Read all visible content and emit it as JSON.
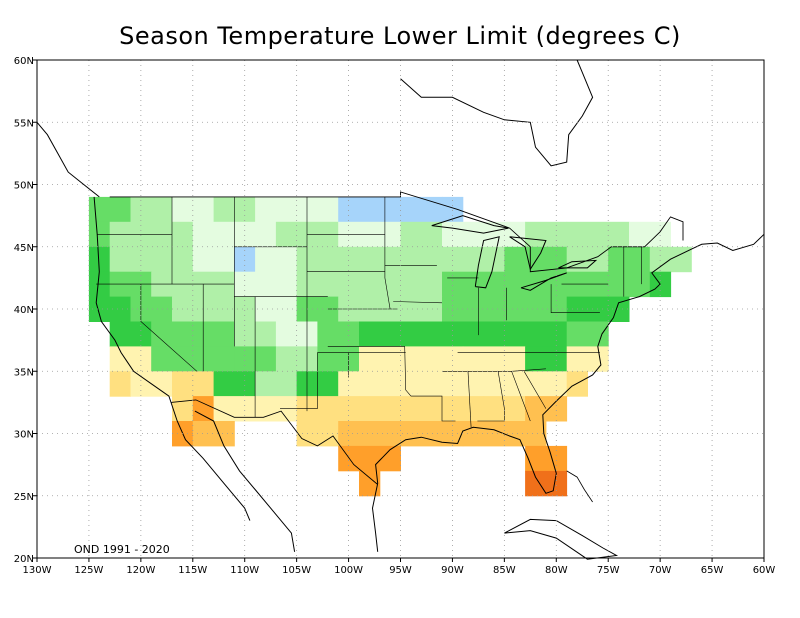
{
  "title": "Season Temperature Lower Limit (degrees C)",
  "period_label": "OND 1991 - 2020",
  "axes": {
    "lon_labels": [
      "130W",
      "125W",
      "120W",
      "115W",
      "110W",
      "105W",
      "100W",
      "95W",
      "90W",
      "85W",
      "80W",
      "75W",
      "70W",
      "65W",
      "60W"
    ],
    "lat_labels": [
      "20N",
      "25N",
      "30N",
      "35N",
      "40N",
      "45N",
      "50N",
      "55N",
      "60N"
    ]
  },
  "colors": {
    "dark_green": "#33cc44",
    "green": "#66dd66",
    "light_green": "#b0f0a8",
    "pale_green": "#e4fce0",
    "light_blue": "#a6d4fa",
    "light_yellow": "#fff3b0",
    "yellow": "#ffe080",
    "light_orange": "#ffc050",
    "orange": "#ff9f2a",
    "dark_orange": "#f0701a"
  }
}
